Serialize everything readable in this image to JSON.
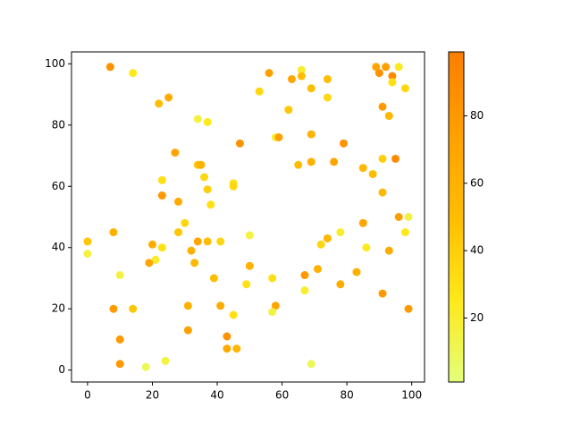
{
  "chart_data": {
    "type": "scatter",
    "x": [
      7,
      14,
      22,
      25,
      56,
      66,
      66,
      63,
      74,
      69,
      53,
      74,
      89,
      92,
      96,
      90,
      94,
      94,
      98,
      34,
      37,
      62,
      91,
      93,
      27,
      47,
      58,
      59,
      69,
      79,
      34,
      35,
      65,
      69,
      76,
      85,
      88,
      91,
      95,
      36,
      23,
      37,
      45,
      45,
      91,
      23,
      28,
      38,
      96,
      99,
      0,
      0,
      8,
      30,
      28,
      20,
      23,
      21,
      34,
      37,
      41,
      32,
      50,
      85,
      74,
      72,
      78,
      86,
      93,
      98,
      19,
      33,
      10,
      50,
      39,
      57,
      71,
      83,
      67,
      49,
      78,
      67,
      91,
      8,
      14,
      31,
      41,
      58,
      57,
      99,
      45,
      31,
      10,
      43,
      43,
      46,
      10,
      18,
      24,
      69
    ],
    "y": [
      99,
      97,
      87,
      89,
      97,
      98,
      96,
      95,
      95,
      92,
      91,
      89,
      99,
      99,
      99,
      97,
      96,
      94,
      92,
      82,
      81,
      85,
      86,
      83,
      71,
      74,
      76,
      76,
      77,
      74,
      67,
      67,
      67,
      68,
      68,
      66,
      64,
      69,
      69,
      63,
      62,
      59,
      61,
      60,
      58,
      57,
      55,
      54,
      50,
      50,
      42,
      38,
      45,
      48,
      45,
      41,
      40,
      36,
      42,
      42,
      42,
      39,
      44,
      48,
      43,
      41,
      45,
      40,
      39,
      45,
      35,
      35,
      31,
      34,
      30,
      30,
      33,
      32,
      31,
      28,
      28,
      26,
      25,
      20,
      20,
      21,
      21,
      21,
      19,
      20,
      18,
      13,
      10,
      11,
      7,
      7,
      2,
      1,
      3,
      2
    ],
    "c": [
      85,
      25,
      50,
      65,
      75,
      20,
      50,
      70,
      50,
      50,
      35,
      35,
      70,
      75,
      25,
      85,
      90,
      30,
      35,
      15,
      25,
      45,
      80,
      55,
      70,
      85,
      20,
      75,
      60,
      85,
      45,
      60,
      50,
      60,
      70,
      55,
      50,
      40,
      90,
      35,
      30,
      40,
      30,
      35,
      55,
      80,
      65,
      30,
      75,
      15,
      45,
      15,
      60,
      35,
      45,
      65,
      30,
      20,
      70,
      50,
      35,
      60,
      15,
      70,
      55,
      35,
      20,
      25,
      65,
      25,
      70,
      55,
      15,
      60,
      50,
      30,
      60,
      60,
      80,
      30,
      65,
      20,
      80,
      80,
      45,
      60,
      65,
      70,
      15,
      80,
      30,
      75,
      80,
      85,
      65,
      55,
      80,
      10,
      15,
      10
    ],
    "colormap": "Wistia",
    "clim": [
      1,
      99
    ],
    "cticks": [
      20,
      40,
      60,
      80
    ],
    "xlim": [
      -4.95,
      103.95
    ],
    "xticks": [
      0,
      20,
      40,
      60,
      80,
      100
    ],
    "ylim": [
      -3.9,
      103.9
    ],
    "yticks": [
      0,
      20,
      40,
      60,
      80,
      100
    ]
  }
}
